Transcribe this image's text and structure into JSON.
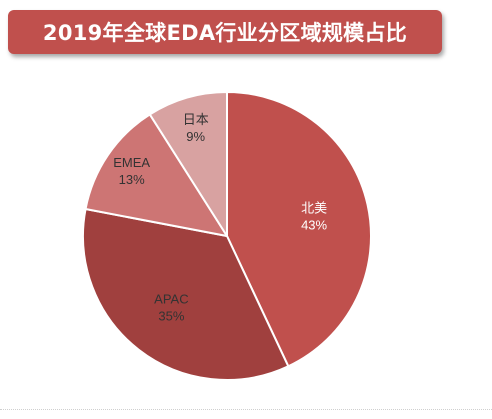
{
  "chart_data": {
    "type": "pie",
    "title": "2019年全球EDA行业分区域规模占比",
    "slices": [
      {
        "label": "北美",
        "pct_text": "43%",
        "value": 43,
        "color": "#c0504d",
        "text_color": "#ffffff"
      },
      {
        "label": "APAC",
        "pct_text": "35%",
        "value": 35,
        "color": "#a0403e",
        "text_color": "#333333"
      },
      {
        "label": "EMEA",
        "pct_text": "13%",
        "value": 13,
        "color": "#cd7574",
        "text_color": "#333333"
      },
      {
        "label": "日本",
        "pct_text": "9%",
        "value": 9,
        "color": "#d8a2a1",
        "text_color": "#333333"
      }
    ],
    "start": "12 o'clock",
    "direction": "clockwise"
  }
}
